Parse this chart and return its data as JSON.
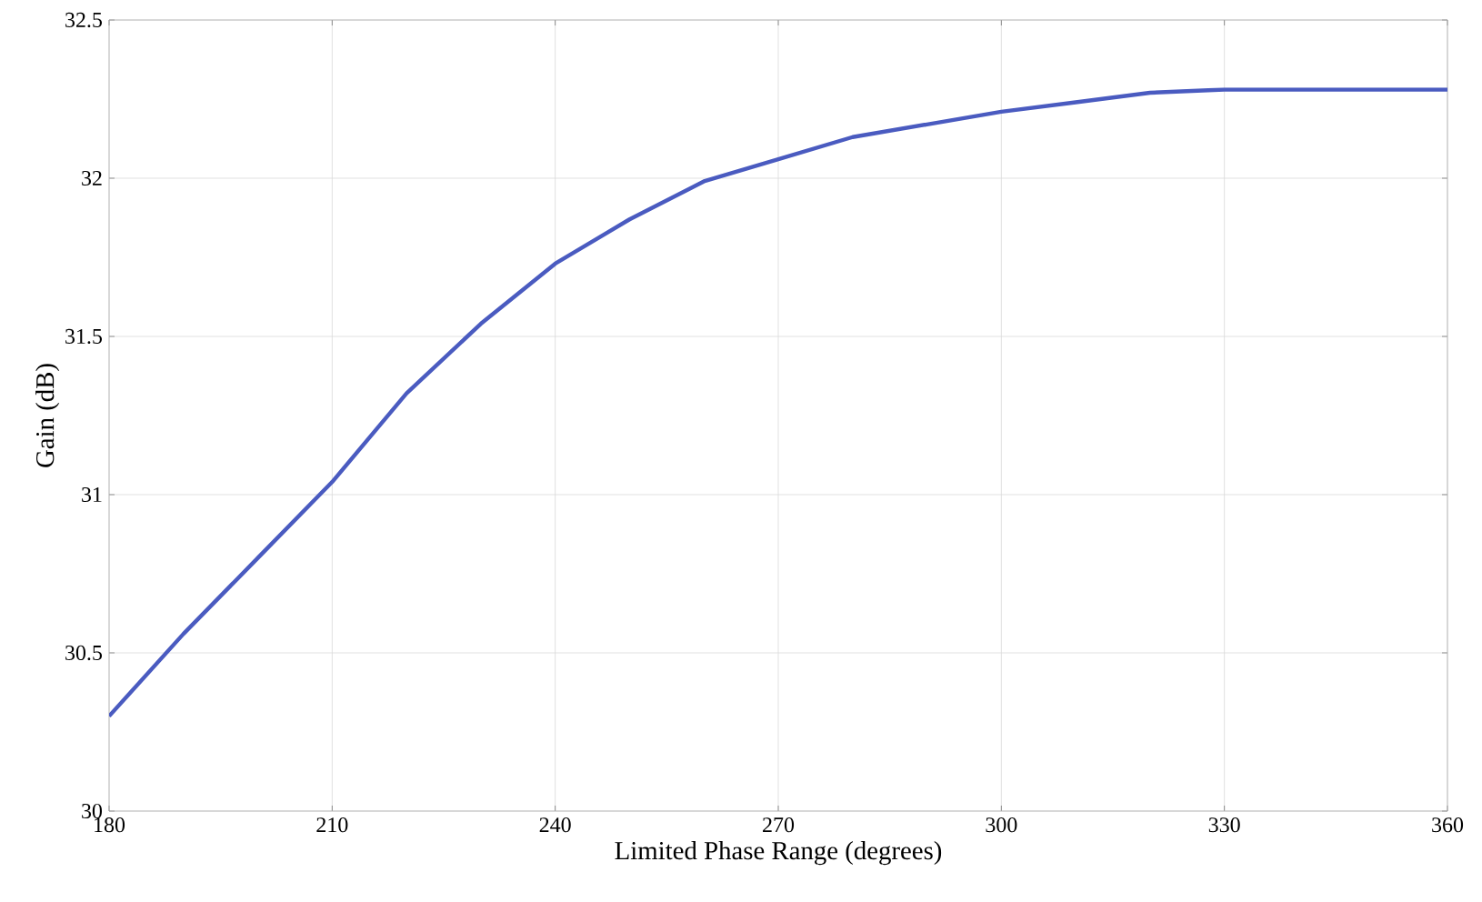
{
  "chart_data": {
    "type": "line",
    "xlabel": "Limited Phase Range (degrees)",
    "ylabel": "Gain (dB)",
    "x": [
      180,
      190,
      200,
      210,
      220,
      230,
      240,
      250,
      260,
      270,
      280,
      290,
      300,
      310,
      320,
      330,
      340,
      350,
      360
    ],
    "series": [
      {
        "color": "#4a5bc0",
        "values": [
          30.3,
          30.56,
          30.8,
          31.04,
          31.32,
          31.54,
          31.73,
          31.87,
          31.99,
          32.06,
          32.13,
          32.17,
          32.21,
          32.24,
          32.27,
          32.28,
          32.28,
          32.28,
          32.28
        ]
      }
    ],
    "xlim": [
      180,
      360
    ],
    "ylim": [
      30,
      32.5
    ],
    "xticks": [
      180,
      210,
      240,
      270,
      300,
      330,
      360
    ],
    "yticks": [
      30,
      30.5,
      31,
      31.5,
      32,
      32.5
    ],
    "grid": true,
    "marker": "none",
    "line_style": "solid"
  }
}
